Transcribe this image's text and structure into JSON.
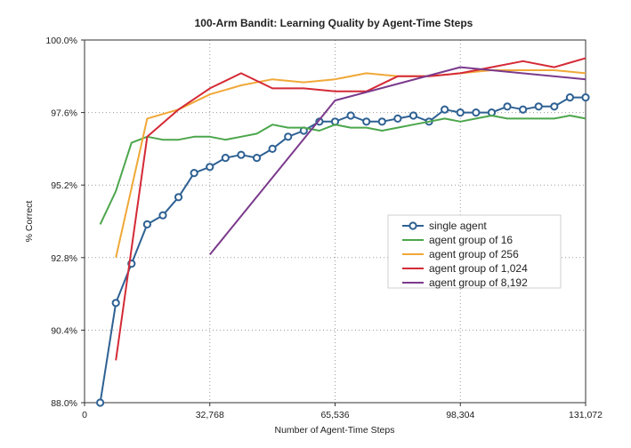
{
  "chart_data": {
    "type": "line",
    "title": "100-Arm Bandit: Learning Quality by Agent-Time Steps",
    "xlabel": "Number of Agent-Time Steps",
    "ylabel": "% Correct",
    "xlim": [
      0,
      131072
    ],
    "ylim": [
      88.0,
      100.0
    ],
    "x_ticks": [
      0,
      32768,
      65536,
      98304,
      131072
    ],
    "x_tick_labels": [
      "0",
      "32,768",
      "65,536",
      "98,304",
      "131,072"
    ],
    "y_ticks": [
      88.0,
      90.4,
      92.8,
      95.2,
      97.6,
      100.0
    ],
    "y_tick_labels": [
      "88.0%",
      "90.4%",
      "92.8%",
      "95.2%",
      "97.6%",
      "100.0%"
    ],
    "grid": true,
    "legend_position": "center-right",
    "series": [
      {
        "name": "single agent",
        "color": "#2e6193",
        "marker": "circle",
        "x": [
          4096,
          8192,
          12288,
          16384,
          20480,
          24576,
          28672,
          32768,
          36864,
          40960,
          45056,
          49152,
          53248,
          57344,
          61440,
          65536,
          69632,
          73728,
          77824,
          81920,
          86016,
          90112,
          94208,
          98304,
          102400,
          106496,
          110592,
          114688,
          118784,
          122880,
          126976,
          131072
        ],
        "y": [
          88.0,
          91.3,
          92.6,
          93.9,
          94.2,
          94.8,
          95.6,
          95.8,
          96.1,
          96.2,
          96.1,
          96.4,
          96.8,
          97.0,
          97.3,
          97.3,
          97.5,
          97.3,
          97.3,
          97.4,
          97.5,
          97.3,
          97.7,
          97.6,
          97.6,
          97.6,
          97.8,
          97.7,
          97.8,
          97.8,
          98.1,
          98.1
        ]
      },
      {
        "name": "agent group of 16",
        "color": "#4ca64c",
        "marker": "none",
        "x": [
          4096,
          8192,
          12288,
          16384,
          20480,
          24576,
          28672,
          32768,
          36864,
          40960,
          45056,
          49152,
          53248,
          57344,
          61440,
          65536,
          69632,
          73728,
          77824,
          81920,
          86016,
          90112,
          94208,
          98304,
          102400,
          106496,
          110592,
          114688,
          118784,
          122880,
          126976,
          131072
        ],
        "y": [
          93.9,
          95.0,
          96.6,
          96.8,
          96.7,
          96.7,
          96.8,
          96.8,
          96.7,
          96.8,
          96.9,
          97.2,
          97.1,
          97.1,
          97.0,
          97.2,
          97.1,
          97.1,
          97.0,
          97.1,
          97.2,
          97.3,
          97.4,
          97.3,
          97.4,
          97.5,
          97.4,
          97.4,
          97.4,
          97.4,
          97.5,
          97.4
        ]
      },
      {
        "name": "agent group of 256",
        "color": "#f0a838",
        "marker": "none",
        "x": [
          8192,
          16384,
          24576,
          32768,
          40960,
          49152,
          57344,
          65536,
          73728,
          81920,
          90112,
          98304,
          106496,
          114688,
          122880,
          131072
        ],
        "y": [
          92.8,
          97.4,
          97.7,
          98.2,
          98.5,
          98.7,
          98.6,
          98.7,
          98.9,
          98.8,
          98.8,
          98.9,
          99.0,
          99.0,
          99.0,
          98.9
        ]
      },
      {
        "name": "agent group of 1,024",
        "color": "#d42a36",
        "marker": "none",
        "x": [
          8192,
          16384,
          24576,
          32768,
          40960,
          49152,
          57344,
          65536,
          73728,
          81920,
          90112,
          98304,
          106496,
          114688,
          122880,
          131072
        ],
        "y": [
          89.4,
          96.8,
          97.7,
          98.4,
          98.9,
          98.4,
          98.4,
          98.3,
          98.3,
          98.8,
          98.8,
          98.9,
          99.1,
          99.3,
          99.1,
          99.4
        ]
      },
      {
        "name": "agent group of 8,192",
        "color": "#7b3a8c",
        "marker": "none",
        "x": [
          32768,
          65536,
          98304,
          131072
        ],
        "y": [
          92.9,
          98.0,
          99.1,
          98.7
        ]
      }
    ]
  }
}
